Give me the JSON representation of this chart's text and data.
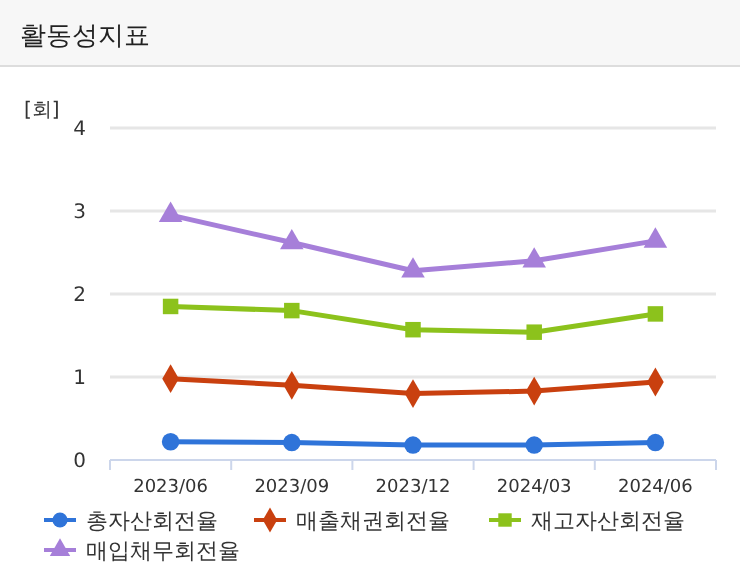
{
  "chart_data": {
    "type": "line",
    "title": "활동성지표",
    "ylabel": "[회]",
    "categories": [
      "2023/06",
      "2023/09",
      "2023/12",
      "2024/03",
      "2024/06"
    ],
    "ylim": [
      0,
      4
    ],
    "yticks": [
      0,
      1,
      2,
      3,
      4
    ],
    "grid": "y",
    "legend": "bottom",
    "series": [
      {
        "name": "총자산회전율",
        "color": "#2f74d9",
        "marker": "circle",
        "values": [
          0.22,
          0.21,
          0.18,
          0.18,
          0.21
        ]
      },
      {
        "name": "매출채권회전율",
        "color": "#c9400f",
        "marker": "diamond",
        "values": [
          0.98,
          0.9,
          0.8,
          0.83,
          0.94
        ]
      },
      {
        "name": "재고자산회전율",
        "color": "#8cc21c",
        "marker": "square",
        "values": [
          1.85,
          1.8,
          1.57,
          1.54,
          1.76
        ]
      },
      {
        "name": "매입채무회전율",
        "color": "#a67fd9",
        "marker": "triangle",
        "values": [
          2.95,
          2.62,
          2.28,
          2.4,
          2.64
        ]
      }
    ]
  }
}
